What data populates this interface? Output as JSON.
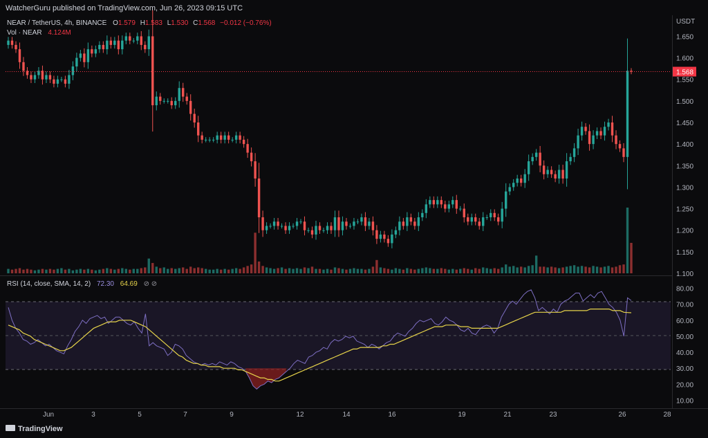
{
  "header": {
    "published_by": "WatcherGuru published on TradingView.com, Jun 26, 2023 09:15 UTC"
  },
  "price_legend": {
    "symbol": "NEAR / TetherUS, 4h, BINANCE",
    "o_label": "O",
    "o_value": "1.579",
    "h_label": "H",
    "h_value": "1.583",
    "l_label": "L",
    "l_value": "1.530",
    "c_label": "C",
    "c_value": "1.568",
    "change": "−0.012 (−0.76%)",
    "vol_label": "Vol · NEAR",
    "vol_value": "4.124M"
  },
  "rsi_legend": {
    "label": "RSI (14, close, SMA, 14, 2)",
    "rsi_value": "72.30",
    "sma_value": "64.69",
    "icons": "⊘ ⊘"
  },
  "price_axis": {
    "currency": "USDT",
    "ticks": [
      "1.650",
      "1.600",
      "1.550",
      "1.500",
      "1.450",
      "1.400",
      "1.350",
      "1.300",
      "1.250",
      "1.200",
      "1.150",
      "1.100"
    ],
    "last_price_tag": "1.568"
  },
  "rsi_axis": {
    "ticks": [
      "80.00",
      "70.00",
      "60.00",
      "50.00",
      "40.00",
      "30.00",
      "20.00",
      "10.00"
    ]
  },
  "time_axis": {
    "ticks": [
      "Jun",
      "3",
      "5",
      "7",
      "9",
      "12",
      "14",
      "16",
      "19",
      "21",
      "23",
      "26",
      "28"
    ]
  },
  "footer": {
    "brand": "TradingView"
  },
  "colors": {
    "background": "#0b0b0d",
    "up": "#26a69a",
    "down": "#ef5350",
    "rsi_line": "#7e6fc4",
    "rsi_sma": "#e6d34a",
    "last_price": "#f23645"
  },
  "chart_data": [
    {
      "type": "candlestick",
      "title": "NEAR / TetherUS, 4h, BINANCE",
      "ylim": [
        1.1,
        1.67
      ],
      "x_ticks": [
        "Jun",
        "3",
        "5",
        "7",
        "9",
        "12",
        "14",
        "16",
        "19",
        "21",
        "23",
        "26",
        "28"
      ],
      "last_close": 1.568,
      "close": [
        1.64,
        1.63,
        1.62,
        1.59,
        1.57,
        1.56,
        1.55,
        1.56,
        1.57,
        1.55,
        1.56,
        1.55,
        1.54,
        1.55,
        1.55,
        1.54,
        1.56,
        1.58,
        1.6,
        1.61,
        1.59,
        1.62,
        1.61,
        1.62,
        1.63,
        1.62,
        1.64,
        1.63,
        1.64,
        1.62,
        1.64,
        1.65,
        1.64,
        1.64,
        1.65,
        1.63,
        1.62,
        1.65,
        1.49,
        1.51,
        1.5,
        1.5,
        1.5,
        1.49,
        1.5,
        1.53,
        1.51,
        1.5,
        1.47,
        1.45,
        1.42,
        1.41,
        1.41,
        1.41,
        1.41,
        1.42,
        1.41,
        1.42,
        1.41,
        1.41,
        1.42,
        1.41,
        1.4,
        1.38,
        1.36,
        1.32,
        1.23,
        1.2,
        1.21,
        1.21,
        1.22,
        1.21,
        1.21,
        1.2,
        1.21,
        1.21,
        1.22,
        1.22,
        1.2,
        1.2,
        1.19,
        1.21,
        1.2,
        1.2,
        1.21,
        1.2,
        1.23,
        1.2,
        1.22,
        1.21,
        1.21,
        1.22,
        1.22,
        1.23,
        1.21,
        1.22,
        1.2,
        1.18,
        1.19,
        1.18,
        1.17,
        1.19,
        1.2,
        1.22,
        1.21,
        1.23,
        1.22,
        1.21,
        1.23,
        1.24,
        1.26,
        1.27,
        1.26,
        1.27,
        1.26,
        1.25,
        1.26,
        1.27,
        1.25,
        1.25,
        1.23,
        1.22,
        1.23,
        1.22,
        1.21,
        1.23,
        1.23,
        1.24,
        1.23,
        1.22,
        1.25,
        1.29,
        1.3,
        1.31,
        1.32,
        1.31,
        1.33,
        1.36,
        1.37,
        1.38,
        1.35,
        1.33,
        1.34,
        1.33,
        1.32,
        1.34,
        1.32,
        1.36,
        1.37,
        1.39,
        1.42,
        1.44,
        1.43,
        1.4,
        1.42,
        1.43,
        1.42,
        1.44,
        1.45,
        1.42,
        1.4,
        1.39,
        1.37,
        1.57,
        1.568
      ],
      "volume_m": [
        0.6,
        0.5,
        0.6,
        0.7,
        0.5,
        0.6,
        0.5,
        0.4,
        0.5,
        0.6,
        0.5,
        0.6,
        0.5,
        0.6,
        0.7,
        0.5,
        0.6,
        0.4,
        0.5,
        0.6,
        0.5,
        0.6,
        0.5,
        0.4,
        0.5,
        0.6,
        0.7,
        0.6,
        0.5,
        0.6,
        0.7,
        0.6,
        0.5,
        0.6,
        0.6,
        0.7,
        0.8,
        2.0,
        1.4,
        0.9,
        0.7,
        0.8,
        0.6,
        0.7,
        0.6,
        0.7,
        0.8,
        0.6,
        0.9,
        0.7,
        0.8,
        0.7,
        0.6,
        0.5,
        0.5,
        0.6,
        0.5,
        0.6,
        0.5,
        0.6,
        0.7,
        0.6,
        0.8,
        1.0,
        1.2,
        5.5,
        1.6,
        1.0,
        0.8,
        0.7,
        0.6,
        0.7,
        0.8,
        0.6,
        0.7,
        0.6,
        0.7,
        0.6,
        0.8,
        0.7,
        0.9,
        0.6,
        0.6,
        0.5,
        0.6,
        0.5,
        0.8,
        0.7,
        0.6,
        0.5,
        0.6,
        0.7,
        0.6,
        0.6,
        0.5,
        0.6,
        0.9,
        1.8,
        0.8,
        0.7,
        0.6,
        0.5,
        0.7,
        0.6,
        0.5,
        0.7,
        0.6,
        0.5,
        0.6,
        0.7,
        0.8,
        0.7,
        0.6,
        0.6,
        0.7,
        0.6,
        0.5,
        0.6,
        0.5,
        0.6,
        0.7,
        0.6,
        0.5,
        0.7,
        0.6,
        0.8,
        0.7,
        0.6,
        0.7,
        0.6,
        0.8,
        1.2,
        0.9,
        1.0,
        0.8,
        0.9,
        0.8,
        1.0,
        1.1,
        2.4,
        0.9,
        0.9,
        0.8,
        0.9,
        0.8,
        0.7,
        0.8,
        0.9,
        1.0,
        1.1,
        0.9,
        1.0,
        0.9,
        0.8,
        1.0,
        0.9,
        0.8,
        0.9,
        1.0,
        0.8,
        0.9,
        1.1,
        1.2,
        8.9,
        4.124
      ]
    },
    {
      "type": "line",
      "title": "RSI (14, close, SMA, 14, 2)",
      "ylim": [
        5,
        85
      ],
      "levels": [
        30,
        50,
        70
      ],
      "series": [
        {
          "name": "RSI",
          "last": 72.3,
          "values": [
            68,
            60,
            55,
            52,
            48,
            47,
            45,
            46,
            48,
            46,
            44,
            45,
            43,
            41,
            40,
            39,
            44,
            48,
            53,
            56,
            60,
            58,
            61,
            62,
            63,
            61,
            62,
            58,
            60,
            62,
            62,
            60,
            58,
            57,
            59,
            55,
            52,
            64,
            44,
            46,
            44,
            43,
            42,
            38,
            40,
            45,
            44,
            42,
            38,
            36,
            34,
            33,
            32,
            33,
            32,
            33,
            32,
            34,
            33,
            32,
            34,
            33,
            31,
            30,
            28,
            24,
            19,
            17,
            19,
            20,
            22,
            21,
            23,
            24,
            26,
            28,
            30,
            33,
            35,
            34,
            33,
            37,
            38,
            40,
            41,
            43,
            42,
            46,
            48,
            47,
            48,
            50,
            49,
            50,
            47,
            46,
            45,
            43,
            45,
            44,
            42,
            44,
            46,
            47,
            50,
            52,
            51,
            50,
            53,
            55,
            58,
            60,
            59,
            60,
            61,
            58,
            57,
            59,
            62,
            60,
            59,
            57,
            54,
            53,
            55,
            52,
            51,
            54,
            56,
            57,
            56,
            52,
            55,
            62,
            66,
            70,
            72,
            70,
            73,
            76,
            78,
            79,
            74,
            66,
            68,
            66,
            64,
            67,
            65,
            70,
            72,
            73,
            75,
            77,
            77,
            72,
            74,
            76,
            74,
            77,
            78,
            74,
            70,
            68,
            65,
            60,
            50,
            74,
            72.3
          ]
        },
        {
          "name": "SMA",
          "last": 64.69,
          "values": [
            57,
            56,
            55,
            54,
            52,
            51,
            50,
            48,
            47,
            46,
            45,
            44,
            43,
            42,
            41,
            41,
            42,
            43,
            45,
            47,
            49,
            51,
            53,
            55,
            56,
            57,
            58,
            59,
            59,
            59,
            60,
            60,
            60,
            60,
            59,
            58,
            57,
            56,
            54,
            52,
            50,
            48,
            46,
            44,
            42,
            40,
            38,
            37,
            35,
            34,
            33,
            33,
            32,
            32,
            31,
            31,
            31,
            31,
            30,
            30,
            30,
            30,
            29,
            29,
            28,
            27,
            26,
            25,
            24,
            24,
            23,
            23,
            22,
            22,
            23,
            24,
            25,
            26,
            27,
            28,
            29,
            30,
            31,
            32,
            33,
            34,
            35,
            36,
            37,
            38,
            39,
            40,
            41,
            42,
            42,
            43,
            43,
            43,
            43,
            43,
            43,
            44,
            44,
            45,
            45,
            46,
            47,
            48,
            49,
            50,
            51,
            52,
            53,
            54,
            55,
            56,
            56,
            56,
            57,
            57,
            57,
            57,
            56,
            56,
            56,
            55,
            55,
            55,
            55,
            55,
            55,
            55,
            55,
            56,
            57,
            58,
            59,
            60,
            61,
            62,
            63,
            64,
            65,
            65,
            65,
            65,
            65,
            65,
            65,
            65,
            66,
            66,
            66,
            66,
            66,
            66,
            66,
            67,
            67,
            67,
            67,
            67,
            67,
            66,
            66,
            66,
            65,
            64.8,
            64.69
          ]
        }
      ]
    }
  ]
}
